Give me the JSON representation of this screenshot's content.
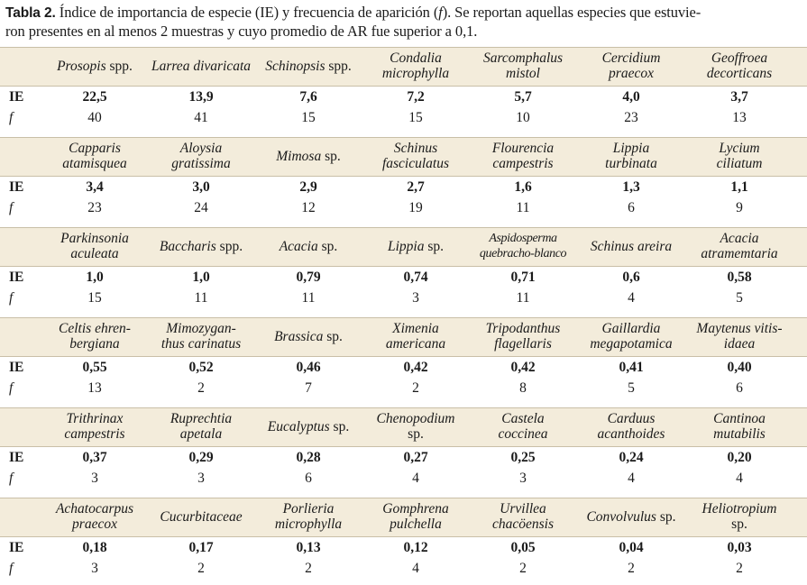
{
  "caption": {
    "label": "Tabla 2.",
    "text_before": " Índice de importancia de especie (IE) y frecuencia de aparición (",
    "f_symbol": "f",
    "text_after": "). Se reportan aquellas especies que estuvie-",
    "line2": "ron presentes en al menos 2 muestras y cuyo promedio de AR fue superior a 0,1."
  },
  "row_labels": {
    "ie": "IE",
    "f": "f"
  },
  "blocks": [
    {
      "species": [
        {
          "lines": [
            [
              {
                "t": "Prosopis",
                "i": true
              },
              {
                "t": " spp.",
                "i": false
              }
            ]
          ]
        },
        {
          "lines": [
            [
              {
                "t": "Larrea divaricata",
                "i": true
              }
            ]
          ]
        },
        {
          "lines": [
            [
              {
                "t": "Schinopsis",
                "i": true
              },
              {
                "t": " spp.",
                "i": false
              }
            ]
          ]
        },
        {
          "lines": [
            [
              {
                "t": "Condalia",
                "i": true
              }
            ],
            [
              {
                "t": "microphylla",
                "i": true
              }
            ]
          ]
        },
        {
          "lines": [
            [
              {
                "t": "Sarcomphalus",
                "i": true
              }
            ],
            [
              {
                "t": "mistol",
                "i": true
              }
            ]
          ]
        },
        {
          "lines": [
            [
              {
                "t": "Cercidium",
                "i": true
              }
            ],
            [
              {
                "t": "praecox",
                "i": true
              }
            ]
          ]
        },
        {
          "lines": [
            [
              {
                "t": "Geoffroea",
                "i": true
              }
            ],
            [
              {
                "t": "decorticans",
                "i": true
              }
            ]
          ]
        }
      ],
      "ie": [
        "22,5",
        "13,9",
        "7,6",
        "7,2",
        "5,7",
        "4,0",
        "3,7"
      ],
      "f": [
        "40",
        "41",
        "15",
        "15",
        "10",
        "23",
        "13"
      ]
    },
    {
      "species": [
        {
          "lines": [
            [
              {
                "t": "Capparis",
                "i": true
              }
            ],
            [
              {
                "t": "atamisquea",
                "i": true
              }
            ]
          ]
        },
        {
          "lines": [
            [
              {
                "t": "Aloysia",
                "i": true
              }
            ],
            [
              {
                "t": "gratissima",
                "i": true
              }
            ]
          ]
        },
        {
          "lines": [
            [
              {
                "t": "Mimosa",
                "i": true
              },
              {
                "t": " sp.",
                "i": false
              }
            ]
          ]
        },
        {
          "lines": [
            [
              {
                "t": "Schinus",
                "i": true
              }
            ],
            [
              {
                "t": "fasciculatus",
                "i": true
              }
            ]
          ]
        },
        {
          "lines": [
            [
              {
                "t": "Flourencia",
                "i": true
              }
            ],
            [
              {
                "t": "campestris",
                "i": true
              }
            ]
          ]
        },
        {
          "lines": [
            [
              {
                "t": "Lippia",
                "i": true
              }
            ],
            [
              {
                "t": "turbinata",
                "i": true
              }
            ]
          ]
        },
        {
          "lines": [
            [
              {
                "t": "Lycium",
                "i": true
              }
            ],
            [
              {
                "t": "ciliatum",
                "i": true
              }
            ]
          ]
        }
      ],
      "ie": [
        "3,4",
        "3,0",
        "2,9",
        "2,7",
        "1,6",
        "1,3",
        "1,1"
      ],
      "f": [
        "23",
        "24",
        "12",
        "19",
        "11",
        "6",
        "9"
      ]
    },
    {
      "species": [
        {
          "lines": [
            [
              {
                "t": "Parkinsonia",
                "i": true
              }
            ],
            [
              {
                "t": "aculeata",
                "i": true
              }
            ]
          ]
        },
        {
          "lines": [
            [
              {
                "t": "Baccharis",
                "i": true
              },
              {
                "t": " spp.",
                "i": false
              }
            ]
          ]
        },
        {
          "lines": [
            [
              {
                "t": "Acacia",
                "i": true
              },
              {
                "t": " sp.",
                "i": false
              }
            ]
          ]
        },
        {
          "lines": [
            [
              {
                "t": "Lippia",
                "i": true
              },
              {
                "t": " sp.",
                "i": false
              }
            ]
          ]
        },
        {
          "lines": [
            [
              {
                "t": "Aspidosperma",
                "i": true
              }
            ],
            [
              {
                "t": "quebracho-blanco",
                "i": true
              }
            ]
          ],
          "small": true
        },
        {
          "lines": [
            [
              {
                "t": "Schinus areira",
                "i": true
              }
            ]
          ]
        },
        {
          "lines": [
            [
              {
                "t": "Acacia",
                "i": true
              }
            ],
            [
              {
                "t": "atramemtaria",
                "i": true
              }
            ]
          ]
        }
      ],
      "ie": [
        "1,0",
        "1,0",
        "0,79",
        "0,74",
        "0,71",
        "0,6",
        "0,58"
      ],
      "f": [
        "15",
        "11",
        "11",
        "3",
        "11",
        "4",
        "5"
      ]
    },
    {
      "species": [
        {
          "lines": [
            [
              {
                "t": "Celtis ehren-",
                "i": true
              }
            ],
            [
              {
                "t": "bergiana",
                "i": true
              }
            ]
          ]
        },
        {
          "lines": [
            [
              {
                "t": "Mimozygan-",
                "i": true
              }
            ],
            [
              {
                "t": "thus carinatus",
                "i": true
              }
            ]
          ]
        },
        {
          "lines": [
            [
              {
                "t": "Brassica",
                "i": true
              },
              {
                "t": " sp.",
                "i": false
              }
            ]
          ]
        },
        {
          "lines": [
            [
              {
                "t": "Ximenia",
                "i": true
              }
            ],
            [
              {
                "t": "americana",
                "i": true
              }
            ]
          ]
        },
        {
          "lines": [
            [
              {
                "t": "Tripodanthus",
                "i": true
              }
            ],
            [
              {
                "t": "flagellaris",
                "i": true
              }
            ]
          ]
        },
        {
          "lines": [
            [
              {
                "t": "Gaillardia",
                "i": true
              }
            ],
            [
              {
                "t": "megapotamica",
                "i": true
              }
            ]
          ]
        },
        {
          "lines": [
            [
              {
                "t": "Maytenus vitis-",
                "i": true
              }
            ],
            [
              {
                "t": "idaea",
                "i": true
              }
            ]
          ]
        }
      ],
      "ie": [
        "0,55",
        "0,52",
        "0,46",
        "0,42",
        "0,42",
        "0,41",
        "0,40"
      ],
      "f": [
        "13",
        "2",
        "7",
        "2",
        "8",
        "5",
        "6"
      ]
    },
    {
      "species": [
        {
          "lines": [
            [
              {
                "t": "Trithrinax",
                "i": true
              }
            ],
            [
              {
                "t": "campestris",
                "i": true
              }
            ]
          ]
        },
        {
          "lines": [
            [
              {
                "t": "Ruprechtia",
                "i": true
              }
            ],
            [
              {
                "t": "apetala",
                "i": true
              }
            ]
          ]
        },
        {
          "lines": [
            [
              {
                "t": "Eucalyptus",
                "i": true
              },
              {
                "t": " sp.",
                "i": false
              }
            ]
          ]
        },
        {
          "lines": [
            [
              {
                "t": "Chenopodium",
                "i": true
              }
            ],
            [
              {
                "t": "sp.",
                "i": false
              }
            ]
          ]
        },
        {
          "lines": [
            [
              {
                "t": "Castela",
                "i": true
              }
            ],
            [
              {
                "t": "coccinea",
                "i": true
              }
            ]
          ]
        },
        {
          "lines": [
            [
              {
                "t": "Carduus",
                "i": true
              }
            ],
            [
              {
                "t": "acanthoides",
                "i": true
              }
            ]
          ]
        },
        {
          "lines": [
            [
              {
                "t": "Cantinoa",
                "i": true
              }
            ],
            [
              {
                "t": "mutabilis",
                "i": true
              }
            ]
          ]
        }
      ],
      "ie": [
        "0,37",
        "0,29",
        "0,28",
        "0,27",
        "0,25",
        "0,24",
        "0,20"
      ],
      "f": [
        "3",
        "3",
        "6",
        "4",
        "3",
        "4",
        "4"
      ]
    },
    {
      "species": [
        {
          "lines": [
            [
              {
                "t": "Achatocarpus",
                "i": true
              }
            ],
            [
              {
                "t": "praecox",
                "i": true
              }
            ]
          ]
        },
        {
          "lines": [
            [
              {
                "t": "Cucurbitaceae",
                "i": true
              }
            ]
          ]
        },
        {
          "lines": [
            [
              {
                "t": "Porlieria",
                "i": true
              }
            ],
            [
              {
                "t": "microphylla",
                "i": true
              }
            ]
          ]
        },
        {
          "lines": [
            [
              {
                "t": "Gomphrena",
                "i": true
              }
            ],
            [
              {
                "t": "pulchella",
                "i": true
              }
            ]
          ]
        },
        {
          "lines": [
            [
              {
                "t": "Urvillea",
                "i": true
              }
            ],
            [
              {
                "t": "chacöensis",
                "i": true
              }
            ]
          ]
        },
        {
          "lines": [
            [
              {
                "t": "Convolvulus",
                "i": true
              },
              {
                "t": " sp.",
                "i": false
              }
            ]
          ]
        },
        {
          "lines": [
            [
              {
                "t": "Heliotropium",
                "i": true
              }
            ],
            [
              {
                "t": "sp.",
                "i": false
              }
            ]
          ]
        }
      ],
      "ie": [
        "0,18",
        "0,17",
        "0,13",
        "0,12",
        "0,05",
        "0,04",
        "0,03"
      ],
      "f": [
        "3",
        "2",
        "2",
        "4",
        "2",
        "2",
        "2"
      ]
    }
  ]
}
